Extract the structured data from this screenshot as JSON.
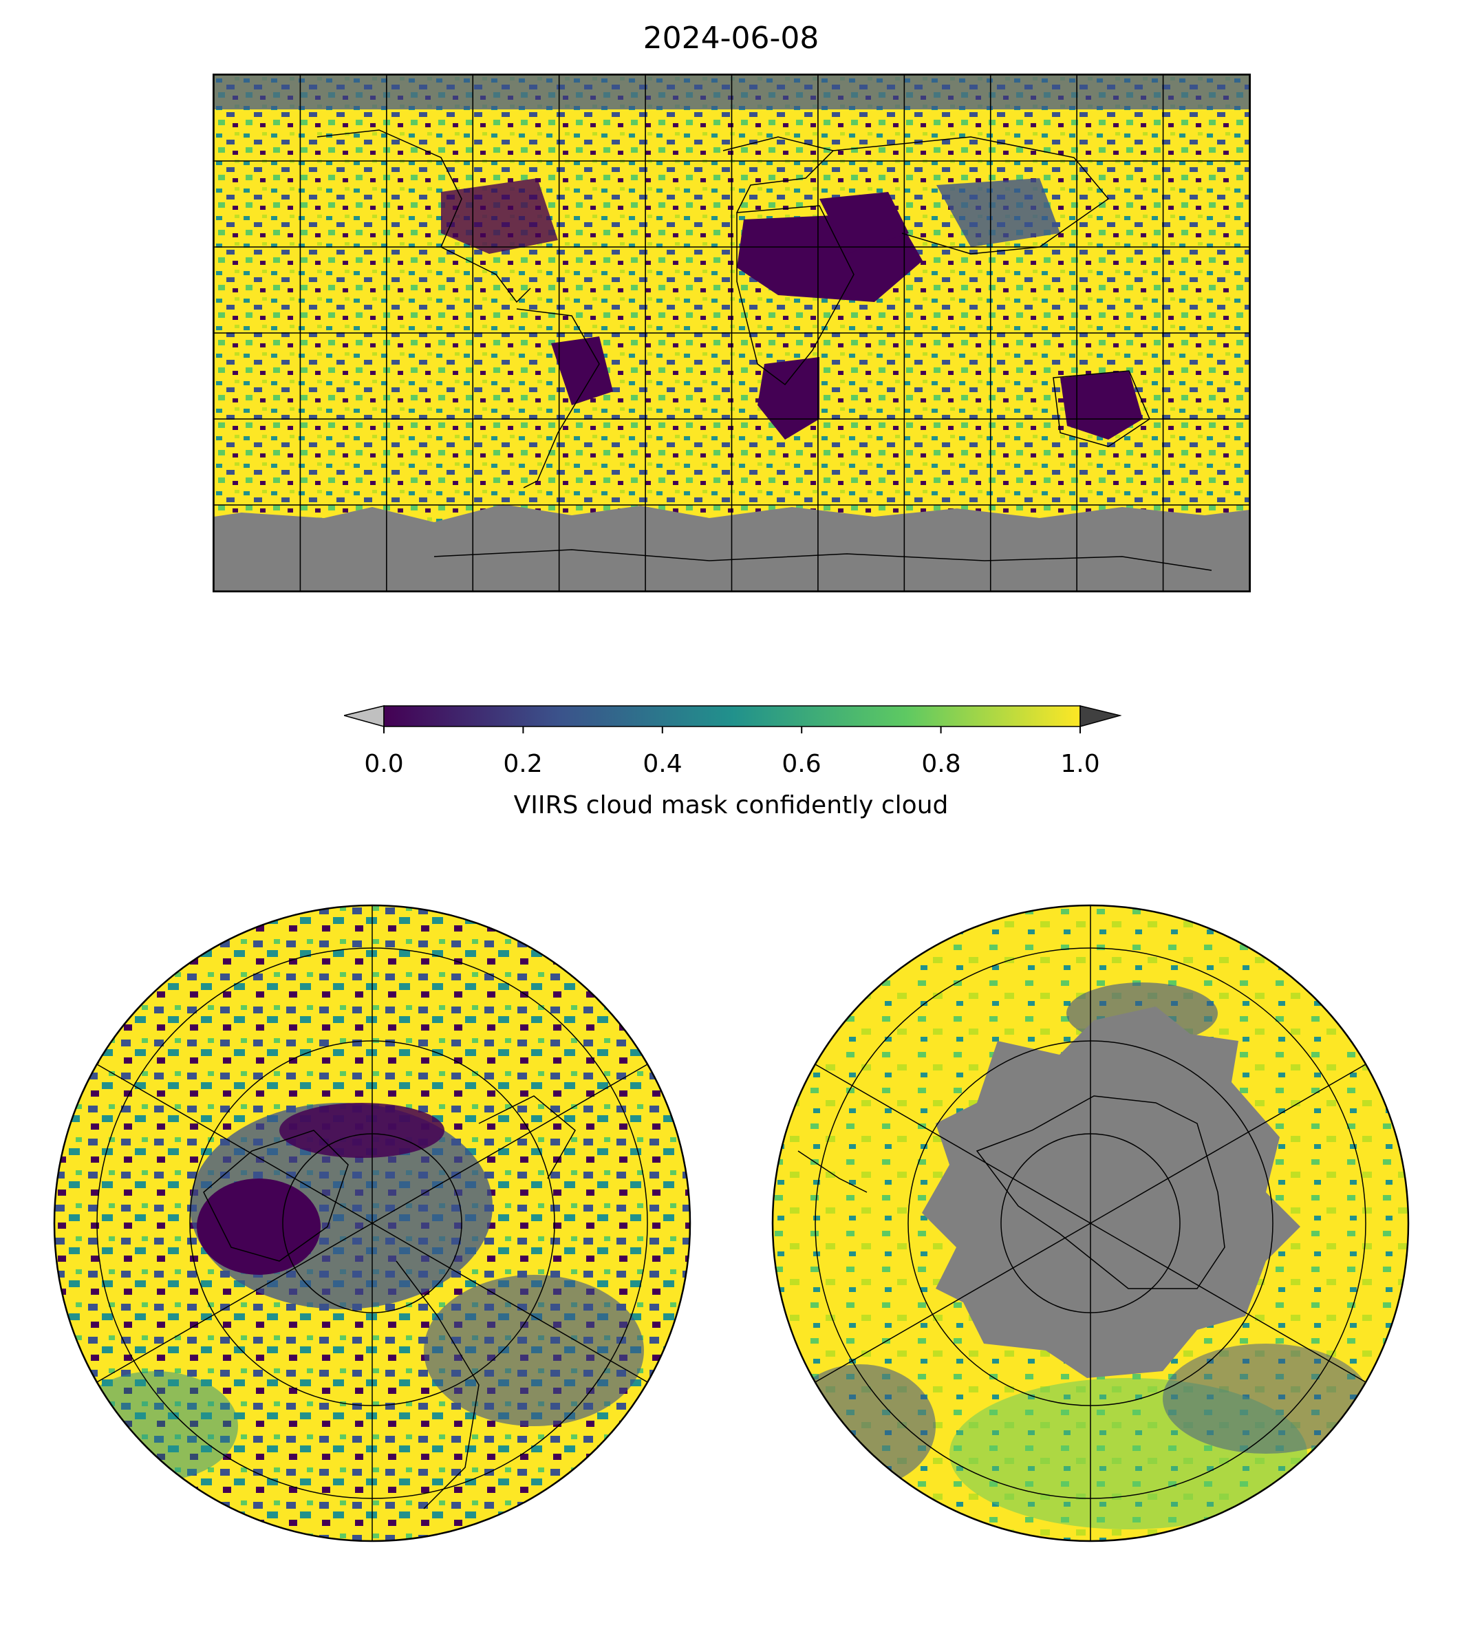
{
  "title": "2024-06-08",
  "colorbar": {
    "label": "VIIRS cloud mask confidently cloud",
    "ticks": [
      "0.0",
      "0.2",
      "0.4",
      "0.6",
      "0.8",
      "1.0"
    ],
    "range": [
      0.0,
      1.0
    ],
    "colormap": [
      "#440154",
      "#3b528b",
      "#21918c",
      "#5ec962",
      "#fde725"
    ],
    "extend_under_color": "#c0c0c0",
    "extend_over_color": "#404040",
    "missing_color": "#808080"
  },
  "maps": [
    {
      "name": "global-plate-carree",
      "projection": "PlateCarree",
      "gridlines": true
    },
    {
      "name": "north-polar-stereographic",
      "projection": "NorthPolarStereo",
      "gridlines": true
    },
    {
      "name": "south-polar-stereographic",
      "projection": "SouthPolarStereo",
      "gridlines": true
    }
  ]
}
